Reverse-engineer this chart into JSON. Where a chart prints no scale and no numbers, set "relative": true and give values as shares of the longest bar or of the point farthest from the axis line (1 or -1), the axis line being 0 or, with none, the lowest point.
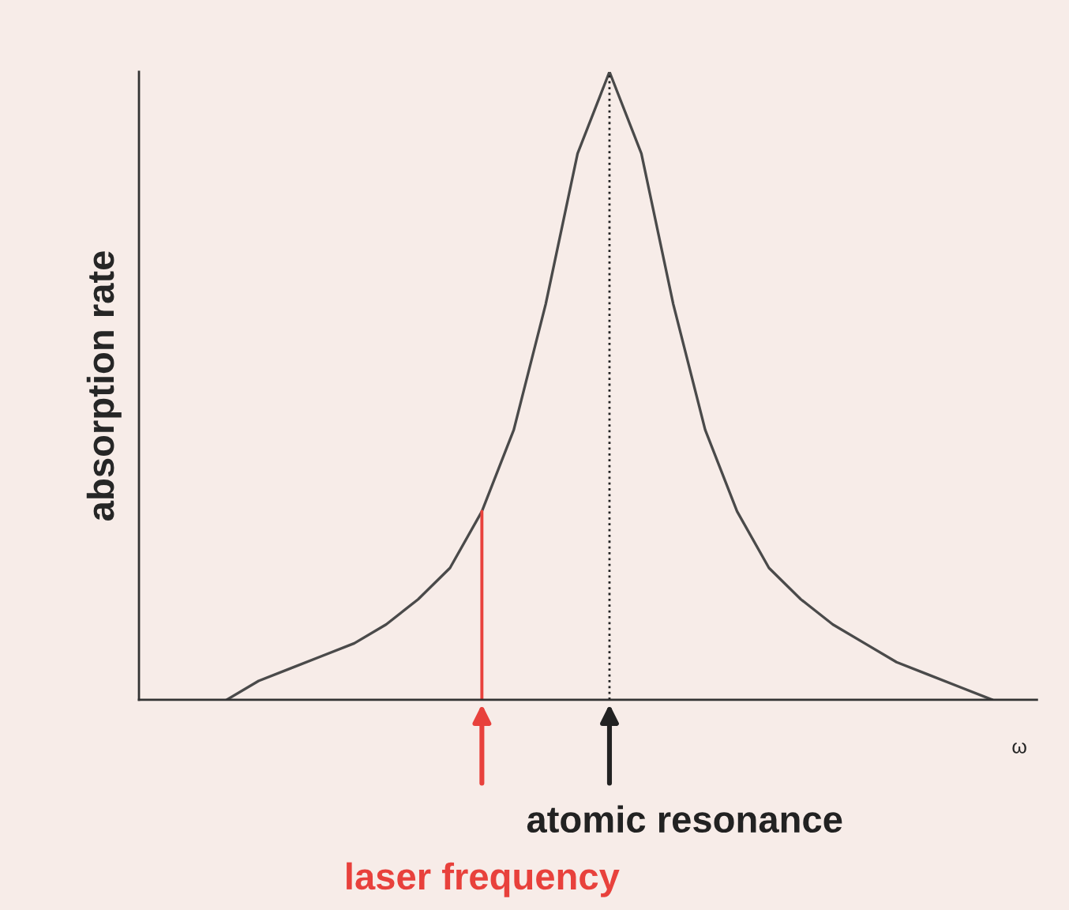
{
  "chart_data": {
    "type": "line",
    "relative": true,
    "ylabel": "absorption rate",
    "xlabel": "ω",
    "categories": [
      null,
      null,
      null,
      null,
      null,
      null,
      null,
      null,
      null,
      null,
      null,
      null,
      null,
      null,
      null,
      null,
      null,
      null,
      null,
      null,
      null,
      null,
      null,
      null,
      null
    ],
    "series": [
      {
        "color": "#4a4a4a",
        "values": [
          0.0,
          0.03,
          0.05,
          0.07,
          0.09,
          0.12,
          0.16,
          0.21,
          0.3,
          0.43,
          0.63,
          0.87,
          1.0,
          0.87,
          0.63,
          0.43,
          0.3,
          0.21,
          0.16,
          0.12,
          0.09,
          0.06,
          0.04,
          0.02,
          0.0
        ]
      }
    ],
    "annotations": [
      "laser frequency",
      "atomic resonance"
    ],
    "legend": false,
    "marker": "none",
    "line_style": "solid"
  }
}
